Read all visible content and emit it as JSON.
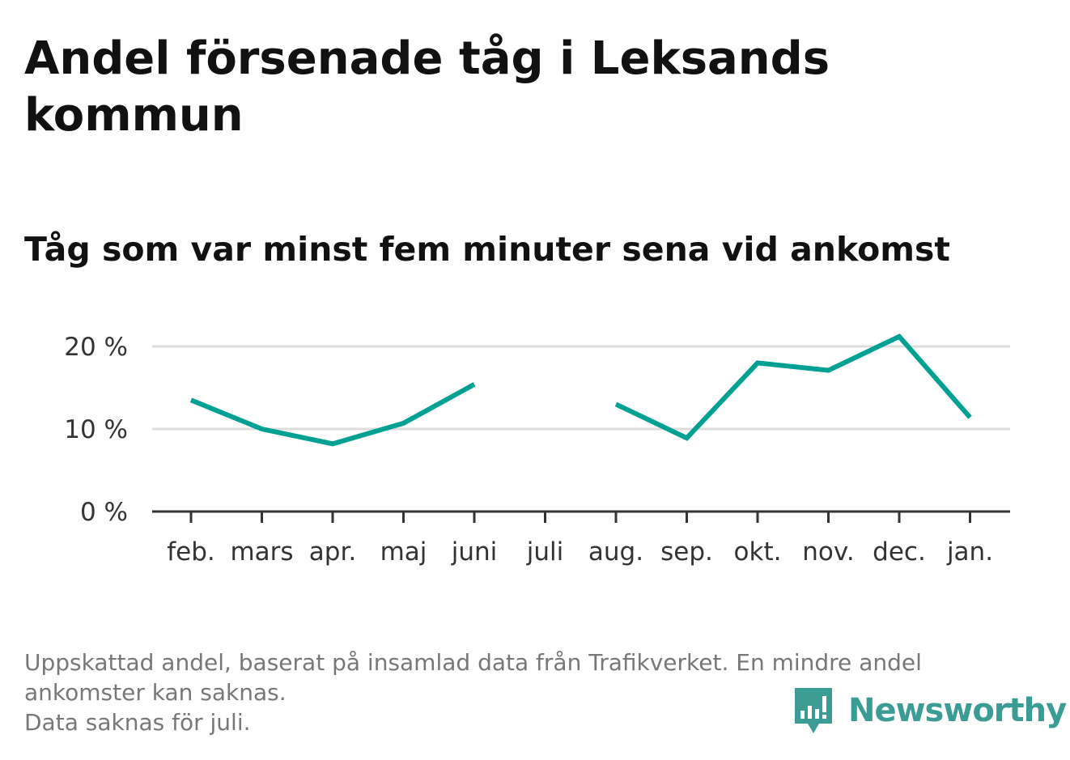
{
  "title": "Andel försenade tåg i Leksands kommun",
  "subtitle": "Tåg som var minst fem minuter sena vid ankomst",
  "footnote": {
    "line1": "Uppskattad andel, baserat på insamlad data från Trafikverket. En mindre andel ankomster kan saknas.",
    "line2": "Data saknas för juli."
  },
  "brand": {
    "name": "Newsworthy",
    "color": "#3b9c96"
  },
  "colors": {
    "line": "#00a093",
    "grid": "#dddddd",
    "axis": "#333333",
    "text": "#333333"
  },
  "chart_data": {
    "type": "line",
    "categories": [
      "feb.",
      "mars",
      "apr.",
      "maj",
      "juni",
      "juli",
      "aug.",
      "sep.",
      "okt.",
      "nov.",
      "dec.",
      "jan."
    ],
    "series": [
      {
        "values": [
          13.5,
          10.0,
          8.2,
          10.7,
          15.4,
          null,
          13.0,
          8.9,
          18.0,
          17.1,
          21.2,
          11.4
        ]
      }
    ],
    "ylim": [
      0,
      22
    ],
    "yticks": [
      0,
      10,
      20
    ],
    "ytick_labels": [
      "0 %",
      "10 %",
      "20 %"
    ],
    "grid": true,
    "legend": "none"
  }
}
